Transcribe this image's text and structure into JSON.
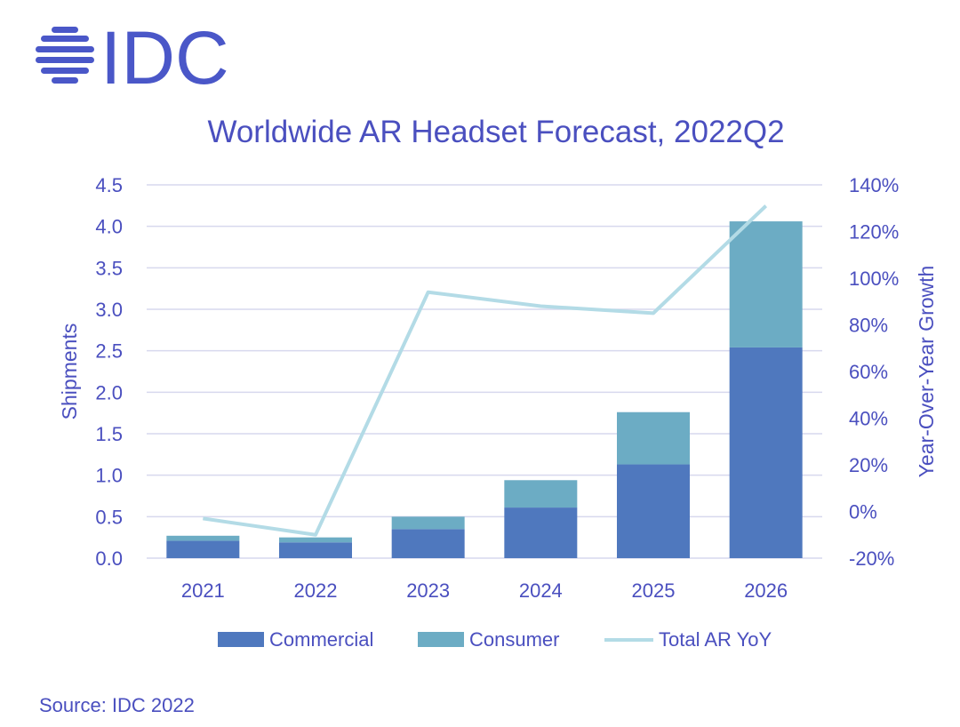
{
  "brand": {
    "name": "IDC",
    "color": "#4a57c8"
  },
  "source": "Source: IDC 2022",
  "chart_data": {
    "type": "bar",
    "stacked": true,
    "title": "Worldwide AR Headset Forecast, 2022Q2",
    "ylabel": "Shipments",
    "y2label": "Year-Over-Year Growth",
    "categories": [
      "2021",
      "2022",
      "2023",
      "2024",
      "2025",
      "2026"
    ],
    "ylim": [
      0,
      4.5
    ],
    "yticks": [
      "0.0",
      "0.5",
      "1.0",
      "1.5",
      "2.0",
      "2.5",
      "3.0",
      "3.5",
      "4.0",
      "4.5"
    ],
    "y2lim": [
      -20,
      140
    ],
    "y2ticks": [
      "-20%",
      "0%",
      "20%",
      "40%",
      "60%",
      "80%",
      "100%",
      "120%",
      "140%"
    ],
    "series": [
      {
        "name": "Commercial",
        "kind": "bar",
        "color": "#4f78be",
        "values": [
          0.21,
          0.19,
          0.35,
          0.61,
          1.13,
          2.54
        ]
      },
      {
        "name": "Consumer",
        "kind": "bar",
        "color": "#6cacc4",
        "values": [
          0.06,
          0.06,
          0.15,
          0.33,
          0.63,
          1.52
        ]
      },
      {
        "name": "Total AR YoY",
        "kind": "line",
        "axis": "right",
        "color": "#b3dbe6",
        "values": [
          -3,
          -10,
          94,
          88,
          85,
          131
        ]
      }
    ],
    "grid": true,
    "legend": "bottom"
  }
}
